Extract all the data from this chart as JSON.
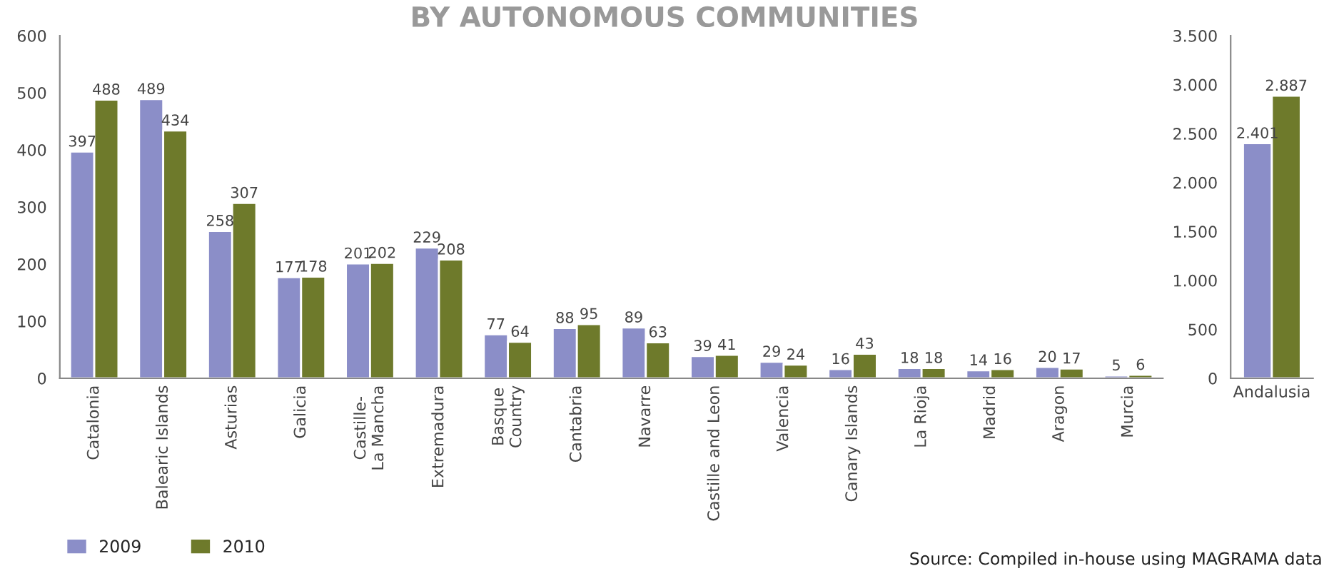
{
  "chart_data": [
    {
      "type": "bar",
      "title": "BY AUTONOMOUS COMMUNITIES",
      "categories": [
        "Catalonia",
        "Balearic Islands",
        "Asturias",
        "Galicia",
        "Castille-\nLa Mancha",
        "Extremadura",
        "Basque\nCountry",
        "Cantabria",
        "Navarre",
        "Castille and Leon",
        "Valencia",
        "Canary Islands",
        "La Rioja",
        "Madrid",
        "Aragon",
        "Murcia"
      ],
      "series": [
        {
          "name": "2009",
          "color": "#8b8ec8",
          "values": [
            397,
            489,
            258,
            177,
            201,
            229,
            77,
            88,
            89,
            39,
            29,
            16,
            18,
            14,
            20,
            5
          ]
        },
        {
          "name": "2010",
          "color": "#6e7a2b",
          "values": [
            488,
            434,
            307,
            178,
            202,
            208,
            64,
            95,
            63,
            41,
            24,
            43,
            18,
            16,
            17,
            6
          ]
        }
      ],
      "ylim": [
        0,
        600
      ],
      "yticks": [
        0,
        100,
        200,
        300,
        400,
        500,
        600
      ],
      "data_labels": true,
      "legend": "bottom left",
      "grid": false,
      "annotations": [
        "Source: Compiled in-house using MAGRAMA data"
      ]
    },
    {
      "type": "bar",
      "categories": [
        "Andalusia"
      ],
      "series": [
        {
          "color": "#8b8ec8",
          "values": [
            2401
          ],
          "value_labels": [
            "2.401"
          ]
        },
        {
          "color": "#6e7a2b",
          "values": [
            2887
          ],
          "value_labels": [
            "2.887"
          ]
        }
      ],
      "ylim": [
        0,
        3500
      ],
      "yticks": [
        0,
        500,
        {
          "value": 1000,
          "label": "1.000"
        },
        {
          "value": 1500,
          "label": "1.500"
        },
        {
          "value": 2000,
          "label": "2.000"
        },
        {
          "value": 2500,
          "label": "2.500"
        },
        {
          "value": 3000,
          "label": "3.000"
        },
        {
          "value": 3500,
          "label": "3.500"
        }
      ],
      "grid": false
    }
  ]
}
